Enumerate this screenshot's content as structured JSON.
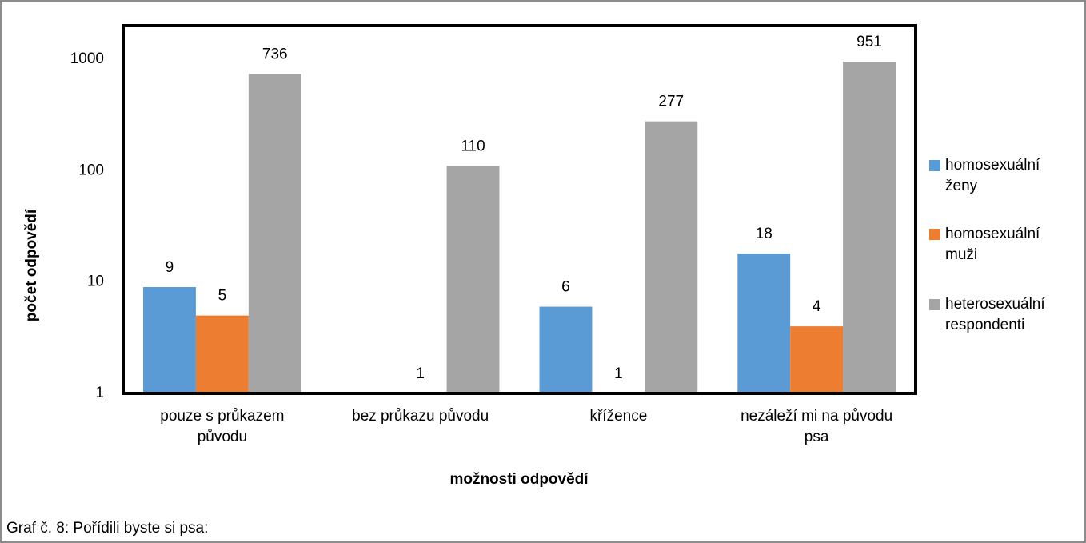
{
  "chart_data": {
    "type": "bar",
    "log_scale": true,
    "grid": false,
    "legend": "right",
    "caption": "Graf č. 8: Pořídili byste si psa:",
    "xlabel": "možnosti odpovědí",
    "ylabel": "počet odpovědí",
    "categories": [
      "pouze s průkazem původu",
      "bez průkazu původu",
      "křížence",
      "nezáleží mi na původu psa"
    ],
    "series": [
      {
        "name": "homosexuální ženy",
        "color": "#5b9bd5",
        "values": [
          9,
          null,
          6,
          18
        ]
      },
      {
        "name": "homosexuální muži",
        "color": "#ed7d31",
        "values": [
          5,
          1,
          1,
          4
        ]
      },
      {
        "name": "heterosexuální respondenti",
        "color": "#a5a5a5",
        "values": [
          736,
          110,
          277,
          951
        ]
      }
    ],
    "ylim": [
      1,
      2000
    ],
    "yticks": [
      1,
      10,
      100,
      1000
    ]
  }
}
